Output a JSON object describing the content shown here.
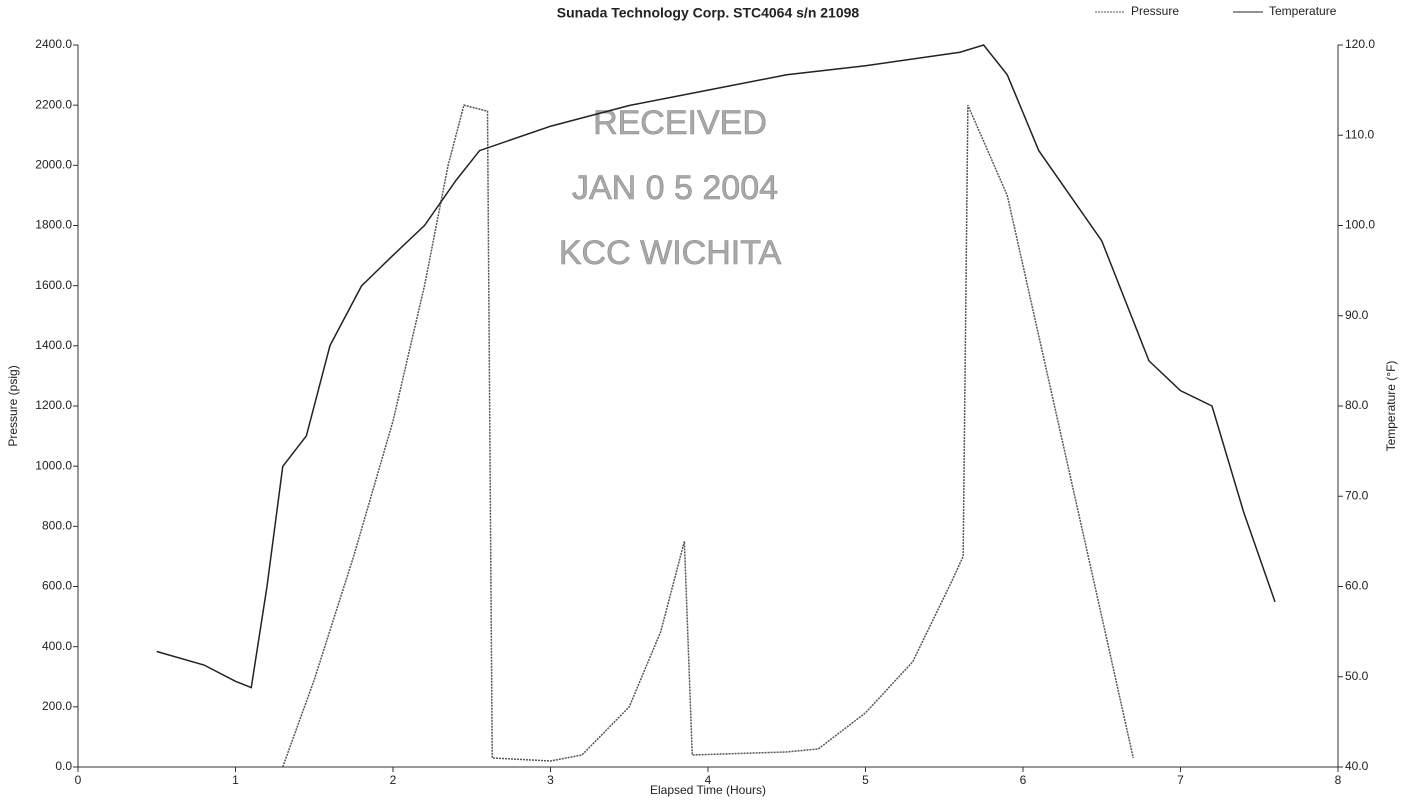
{
  "chart_data": {
    "type": "line",
    "title": "Sunada Technology Corp. STC4064 s/n 21098",
    "xlabel": "Elapsed Time (Hours)",
    "ylabel": "Pressure (psig)",
    "y2label": "Temperature (°F)",
    "annotations": [
      "RECEIVED",
      "JAN 0 5 2004",
      "KCC WICHITA"
    ],
    "legend": "top-right",
    "xlim": [
      0,
      8
    ],
    "xticks": [
      0,
      1,
      2,
      3,
      4,
      5,
      6,
      7,
      8
    ],
    "ylim": [
      0,
      2400
    ],
    "yticks": [
      {
        "value": 0,
        "label": "0.0"
      },
      {
        "value": 200,
        "label": "200.0"
      },
      {
        "value": 400,
        "label": "400.0"
      },
      {
        "value": 600,
        "label": "600.0"
      },
      {
        "value": 800,
        "label": "800.0"
      },
      {
        "value": 1000,
        "label": "1000.0"
      },
      {
        "value": 1200,
        "label": "1200.0"
      },
      {
        "value": 1400,
        "label": "1400.0"
      },
      {
        "value": 1600,
        "label": "1600.0"
      },
      {
        "value": 1800,
        "label": "1800.0"
      },
      {
        "value": 2000,
        "label": "2000.0"
      },
      {
        "value": 2200,
        "label": "2200.0"
      },
      {
        "value": 2400,
        "label": "2400.0"
      }
    ],
    "y2lim": [
      40,
      120
    ],
    "y2ticks": [
      {
        "value": 40,
        "label": "40.0"
      },
      {
        "value": 50,
        "label": "50.0"
      },
      {
        "value": 60,
        "label": "60.0"
      },
      {
        "value": 70,
        "label": "70.0"
      },
      {
        "value": 80,
        "label": "80.0"
      },
      {
        "value": 90,
        "label": "90.0"
      },
      {
        "value": 100,
        "label": "100.0"
      },
      {
        "value": 110,
        "label": "110.0"
      },
      {
        "value": 120,
        "label": "120.0"
      }
    ],
    "series": [
      {
        "name": "Pressure",
        "color": "#555555",
        "dash": true,
        "x": [
          1.3,
          1.5,
          1.75,
          2.0,
          2.2,
          2.35,
          2.45,
          2.6,
          2.63,
          3.0,
          3.2,
          3.5,
          3.7,
          3.85,
          3.9,
          4.5,
          4.7,
          5.0,
          5.3,
          5.55,
          5.62,
          5.65,
          5.9,
          6.2,
          6.5,
          6.7
        ],
        "values": [
          0,
          290,
          700,
          1150,
          1600,
          2000,
          2200,
          2180,
          30,
          20,
          40,
          200,
          450,
          750,
          40,
          50,
          60,
          180,
          350,
          620,
          700,
          2200,
          1900,
          1200,
          500,
          30
        ]
      },
      {
        "name": "Temperature",
        "color": "#222222",
        "axis": "y2",
        "x": [
          0.5,
          0.8,
          1.0,
          1.1,
          1.2,
          1.3,
          1.45,
          1.6,
          1.8,
          2.0,
          2.2,
          2.4,
          2.55,
          3.0,
          3.5,
          4.0,
          4.5,
          5.0,
          5.6,
          5.75,
          5.9,
          6.1,
          6.5,
          6.8,
          7.0,
          7.2,
          7.4,
          7.6
        ],
        "values": [
          52.8,
          51.3,
          49.5,
          48.8,
          60,
          73.3,
          76.7,
          86.7,
          93.3,
          96.7,
          100,
          105,
          108.3,
          111,
          113.3,
          115,
          116.7,
          117.7,
          119.2,
          120,
          116.7,
          108.3,
          98.3,
          85,
          81.7,
          80,
          68.3,
          58.3
        ]
      }
    ]
  }
}
